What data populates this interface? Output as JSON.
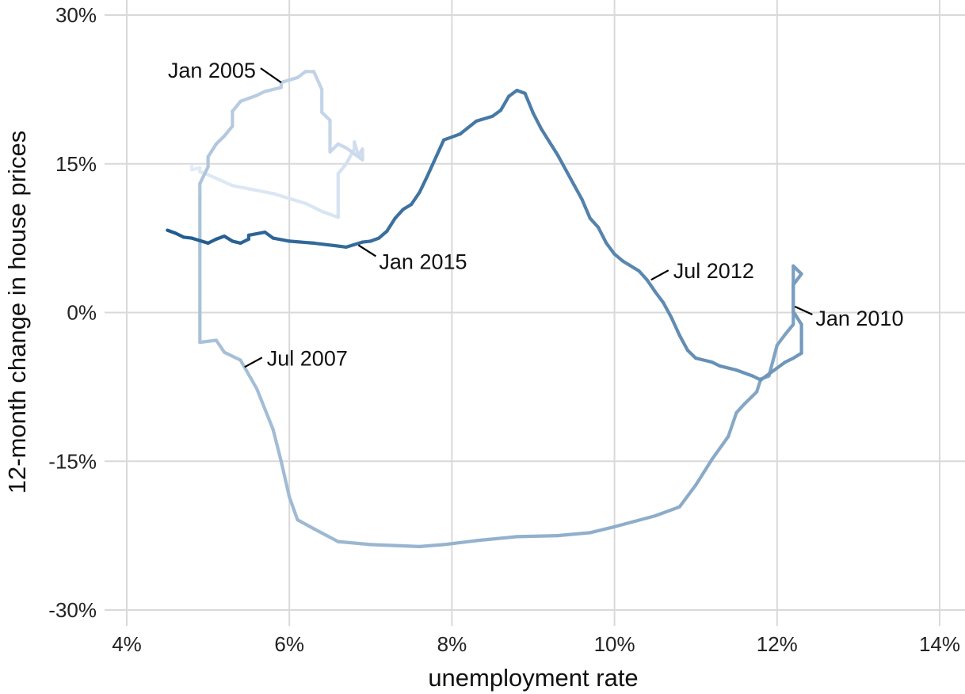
{
  "chart_data": {
    "type": "line",
    "title": "",
    "xlabel": "unemployment rate",
    "ylabel": "12-month change in house prices",
    "xlim": [
      4,
      14
    ],
    "ylim": [
      -30,
      30
    ],
    "x_ticks": [
      4,
      6,
      8,
      10,
      12,
      14
    ],
    "x_tick_labels": [
      "4%",
      "6%",
      "8%",
      "10%",
      "12%",
      "14%"
    ],
    "y_ticks": [
      -30,
      -15,
      0,
      15,
      30
    ],
    "y_tick_labels": [
      "-30%",
      "-15%",
      "0%",
      "15%",
      "30%"
    ],
    "grid": true,
    "colors": {
      "start": "#e3ecf8",
      "end": "#1f5b8f"
    },
    "series": [
      {
        "values_x_y": [
          [
            4.8,
            14.8
          ],
          [
            4.8,
            14.4
          ],
          [
            4.9,
            14.6
          ],
          [
            4.9,
            14.2
          ],
          [
            5.0,
            13.9
          ],
          [
            5.3,
            12.8
          ],
          [
            5.8,
            12.0
          ],
          [
            6.2,
            11.0
          ],
          [
            6.4,
            10.2
          ],
          [
            6.6,
            9.6
          ],
          [
            6.6,
            9.7
          ],
          [
            6.6,
            14.0
          ],
          [
            6.7,
            15.0
          ],
          [
            6.8,
            16.5
          ],
          [
            6.8,
            17.2
          ],
          [
            6.85,
            15.8
          ],
          [
            6.9,
            16.5
          ],
          [
            6.9,
            15.4
          ],
          [
            6.7,
            16.6
          ],
          [
            6.6,
            17.0
          ],
          [
            6.5,
            16.2
          ],
          [
            6.5,
            17.2
          ],
          [
            6.5,
            19.4
          ],
          [
            6.4,
            20.2
          ],
          [
            6.4,
            22.5
          ],
          [
            6.3,
            24.3
          ],
          [
            6.2,
            24.3
          ],
          [
            6.1,
            23.7
          ],
          [
            5.9,
            23.2
          ],
          [
            5.9,
            22.7
          ],
          [
            5.7,
            22.3
          ],
          [
            5.6,
            21.9
          ],
          [
            5.4,
            21.3
          ],
          [
            5.3,
            20.3
          ],
          [
            5.3,
            18.8
          ],
          [
            5.2,
            17.8
          ],
          [
            5.1,
            17.0
          ],
          [
            5.0,
            15.7
          ],
          [
            5.0,
            14.7
          ],
          [
            4.9,
            13.0
          ],
          [
            4.9,
            11.6
          ],
          [
            4.9,
            2.5
          ],
          [
            4.9,
            -3.0
          ],
          [
            5.1,
            -2.8
          ],
          [
            5.2,
            -4.0
          ],
          [
            5.4,
            -4.8
          ],
          [
            5.6,
            -7.7
          ],
          [
            5.8,
            -11.8
          ],
          [
            5.9,
            -15.0
          ],
          [
            6.0,
            -18.6
          ],
          [
            6.1,
            -20.9
          ],
          [
            6.3,
            -21.8
          ],
          [
            6.6,
            -23.1
          ],
          [
            7.0,
            -23.4
          ],
          [
            7.3,
            -23.5
          ],
          [
            7.6,
            -23.6
          ],
          [
            7.9,
            -23.4
          ],
          [
            8.3,
            -23.0
          ],
          [
            8.8,
            -22.6
          ],
          [
            9.3,
            -22.5
          ],
          [
            9.7,
            -22.2
          ],
          [
            10.0,
            -21.6
          ],
          [
            10.5,
            -20.5
          ],
          [
            10.8,
            -19.6
          ],
          [
            11.0,
            -17.4
          ],
          [
            11.2,
            -14.8
          ],
          [
            11.4,
            -12.5
          ],
          [
            11.5,
            -10.1
          ],
          [
            11.6,
            -9.2
          ],
          [
            11.75,
            -8.0
          ],
          [
            11.8,
            -6.7
          ],
          [
            11.9,
            -6.4
          ],
          [
            12.0,
            -3.3
          ],
          [
            12.1,
            -2.2
          ],
          [
            12.2,
            -1.2
          ],
          [
            12.2,
            0.8
          ],
          [
            12.2,
            4.7
          ],
          [
            12.3,
            3.9
          ],
          [
            12.2,
            2.8
          ],
          [
            12.2,
            0.1
          ],
          [
            12.3,
            -1.2
          ],
          [
            12.3,
            -3.0
          ],
          [
            12.3,
            -4.1
          ],
          [
            12.2,
            -4.6
          ],
          [
            12.1,
            -5.0
          ],
          [
            11.9,
            -6.2
          ],
          [
            11.8,
            -6.8
          ],
          [
            11.7,
            -6.4
          ],
          [
            11.5,
            -5.8
          ],
          [
            11.3,
            -5.4
          ],
          [
            11.2,
            -5.0
          ],
          [
            11.0,
            -4.6
          ],
          [
            10.9,
            -3.8
          ],
          [
            10.8,
            -2.3
          ],
          [
            10.7,
            -0.5
          ],
          [
            10.6,
            1.0
          ],
          [
            10.5,
            2.1
          ],
          [
            10.4,
            3.3
          ],
          [
            10.3,
            4.2
          ],
          [
            10.1,
            5.2
          ],
          [
            10.0,
            5.9
          ],
          [
            9.9,
            7.0
          ],
          [
            9.8,
            8.6
          ],
          [
            9.7,
            9.5
          ],
          [
            9.6,
            11.4
          ],
          [
            9.5,
            12.9
          ],
          [
            9.3,
            15.9
          ],
          [
            9.1,
            18.5
          ],
          [
            9.0,
            20.1
          ],
          [
            8.9,
            22.1
          ],
          [
            8.8,
            22.4
          ],
          [
            8.7,
            21.8
          ],
          [
            8.6,
            20.4
          ],
          [
            8.5,
            19.8
          ],
          [
            8.3,
            19.3
          ],
          [
            8.1,
            18.0
          ],
          [
            7.9,
            17.4
          ],
          [
            7.7,
            13.8
          ],
          [
            7.6,
            12.1
          ],
          [
            7.5,
            10.9
          ],
          [
            7.4,
            10.4
          ],
          [
            7.3,
            9.5
          ],
          [
            7.2,
            8.2
          ],
          [
            7.1,
            7.5
          ],
          [
            7.0,
            7.2
          ],
          [
            6.9,
            7.1
          ],
          [
            6.7,
            6.6
          ],
          [
            6.6,
            6.7
          ],
          [
            6.3,
            7.0
          ],
          [
            6.0,
            7.2
          ],
          [
            5.8,
            7.5
          ],
          [
            5.7,
            8.1
          ],
          [
            5.5,
            7.8
          ],
          [
            5.5,
            7.4
          ],
          [
            5.4,
            7.0
          ],
          [
            5.3,
            7.2
          ],
          [
            5.2,
            7.7
          ],
          [
            5.1,
            7.4
          ],
          [
            5.0,
            7.0
          ],
          [
            4.8,
            7.5
          ],
          [
            4.7,
            7.6
          ],
          [
            4.6,
            8.0
          ],
          [
            4.5,
            8.3
          ]
        ]
      }
    ],
    "annotations": [
      {
        "text": "Jan 2005",
        "x": 5.9,
        "y": 23.2
      },
      {
        "text": "Jul 2007",
        "x": 5.45,
        "y": -5.5
      },
      {
        "text": "Jan 2010",
        "x": 12.22,
        "y": 0.6
      },
      {
        "text": "Jul 2012",
        "x": 10.45,
        "y": 3.3
      },
      {
        "text": "Jan 2015",
        "x": 6.85,
        "y": 6.8
      }
    ]
  }
}
